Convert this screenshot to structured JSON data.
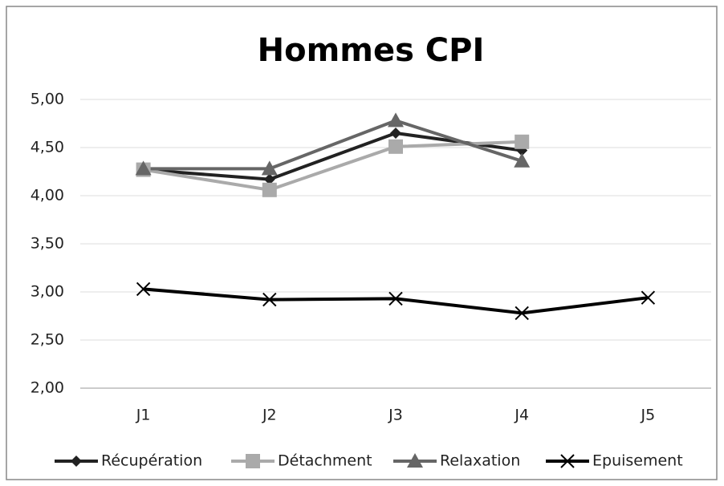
{
  "chart_data": {
    "type": "line",
    "title": "Hommes CPI",
    "categories": [
      "J1",
      "J2",
      "J3",
      "J4",
      "J5"
    ],
    "series": [
      {
        "name": "Récupération",
        "color": "#222222",
        "marker": "diamond",
        "values": [
          4.27,
          4.17,
          4.65,
          4.47,
          null
        ]
      },
      {
        "name": "Détachment",
        "color": "#aaaaaa",
        "marker": "square",
        "values": [
          4.27,
          4.06,
          4.51,
          4.56,
          null
        ]
      },
      {
        "name": "Relaxation",
        "color": "#666666",
        "marker": "triangle",
        "values": [
          4.28,
          4.28,
          4.78,
          4.36,
          null
        ]
      },
      {
        "name": "Epuisement",
        "color": "#000000",
        "marker": "x",
        "values": [
          3.03,
          2.92,
          2.93,
          2.78,
          2.94
        ]
      }
    ],
    "ylim": [
      2,
      5
    ],
    "yticks": [
      {
        "value": 2,
        "label": "2,00"
      },
      {
        "value": 2.5,
        "label": "2,50"
      },
      {
        "value": 3,
        "label": "3,00"
      },
      {
        "value": 3.5,
        "label": "3,50"
      },
      {
        "value": 4,
        "label": "4,00"
      },
      {
        "value": 4.5,
        "label": "4,50"
      },
      {
        "value": 5,
        "label": "5,00"
      }
    ],
    "grid": true,
    "legend": "bottom"
  }
}
